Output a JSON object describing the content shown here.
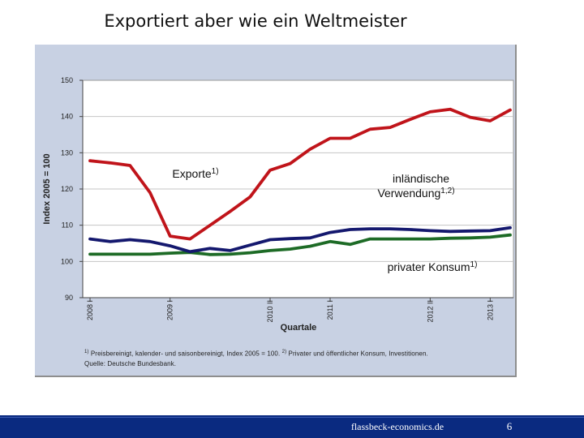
{
  "slide": {
    "title": "Exportiert aber wie ein Weltmeister",
    "footer_link": "flassbeck-economics.de",
    "page_number": "6"
  },
  "colors": {
    "panel_bg": "#c8d1e3",
    "plot_bg": "#ffffff",
    "exporte": "#c0141a",
    "inlaendische_verwendung": "#14186e",
    "privater_konsum": "#1d6b26",
    "footer_bg": "#0a2a80"
  },
  "chart_data": {
    "type": "line",
    "title": "",
    "ylabel": "Index 2005 = 100",
    "xlabel": "Quartale",
    "ylim": [
      90,
      150
    ],
    "yticks": [
      90,
      100,
      110,
      120,
      130,
      140,
      150
    ],
    "grid": true,
    "x": [
      "2008 I",
      "2008 II",
      "2008 III",
      "2008 IV",
      "2009 I",
      "2009 II",
      "2009 III",
      "2009 IV",
      "2010 I",
      "2010 II",
      "2010 III",
      "2010 IV",
      "2011 I",
      "2011 II",
      "2011 III",
      "2011 IV",
      "2012 I",
      "2012 II",
      "2012 III",
      "2012 IV",
      "2013 I",
      "2013 II"
    ],
    "x_tick_labels": [
      {
        "label": "2008 I",
        "index": 0
      },
      {
        "label": "2009 I",
        "index": 4
      },
      {
        "label": "2010 II",
        "index": 9
      },
      {
        "label": "2011 I",
        "index": 12
      },
      {
        "label": "2012 II",
        "index": 17
      },
      {
        "label": "2013 I",
        "index": 20
      }
    ],
    "series": [
      {
        "name": "Exporte",
        "label": "Exporte",
        "sup": "1)",
        "values": [
          127.8,
          127.2,
          126.5,
          119.0,
          107.0,
          106.2,
          110.0,
          113.8,
          117.8,
          125.2,
          127.0,
          131.0,
          134.0,
          134.0,
          136.5,
          137.0,
          139.2,
          141.3,
          142.0,
          139.8,
          138.8,
          141.8
        ]
      },
      {
        "name": "inländische Verwendung",
        "label": "inländische Verwendung",
        "sup": "1,2)",
        "values": [
          106.2,
          105.5,
          106.0,
          105.5,
          104.3,
          102.7,
          103.6,
          103.0,
          104.5,
          106.0,
          106.3,
          106.5,
          108.0,
          108.8,
          109.0,
          109.0,
          108.8,
          108.5,
          108.3,
          108.4,
          108.5,
          109.3
        ]
      },
      {
        "name": "privater Konsum",
        "label": "privater Konsum",
        "sup": "1)",
        "values": [
          102.0,
          102.0,
          102.0,
          102.0,
          102.3,
          102.5,
          101.9,
          102.0,
          102.4,
          103.0,
          103.4,
          104.2,
          105.5,
          104.7,
          106.2,
          106.2,
          106.2,
          106.2,
          106.4,
          106.5,
          106.7,
          107.3
        ]
      }
    ]
  },
  "footnote": {
    "n1_mark": "1)",
    "n1_text": " Preisbereinigt, kalender- und saisonbereinigt, Index 2005 = 100.",
    "n2_mark": "2)",
    "n2_text": " Privater und öffentlicher Konsum, Investitionen.",
    "source": "Quelle: Deutsche Bundesbank."
  }
}
